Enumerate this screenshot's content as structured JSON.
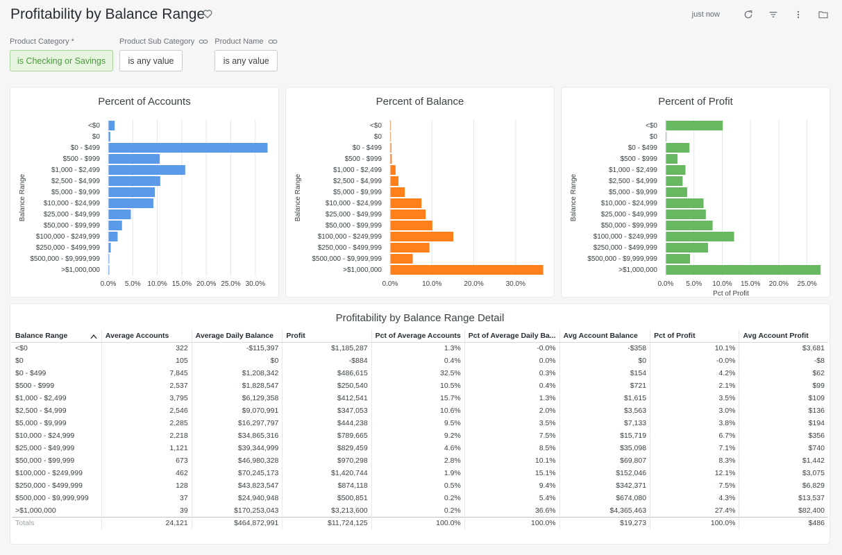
{
  "header": {
    "title": "Profitability by Balance Range",
    "timestamp": "just now",
    "icons": [
      "favorite-icon",
      "refresh-icon",
      "filter-icon",
      "more-vert-icon",
      "folder-icon"
    ]
  },
  "filters": [
    {
      "label": "Product Category *",
      "value": "is Checking or Savings",
      "active": true,
      "linked": false
    },
    {
      "label": "Product Sub Category",
      "value": "is any value",
      "active": false,
      "linked": true
    },
    {
      "label": "Product Name",
      "value": "is any value",
      "active": false,
      "linked": true
    }
  ],
  "charts": {
    "categories": [
      "<$0",
      "$0",
      "$0 - $499",
      "$500 - $999",
      "$1,000 - $2,499",
      "$2,500 - $4,999",
      "$5,000 - $9,999",
      "$10,000 - $24,999",
      "$25,000 - $49,999",
      "$50,000 - $99,999",
      "$100,000 - $249,999",
      "$250,000 - $499,999",
      "$500,000 - $9,999,999",
      ">$1,000,000"
    ],
    "colors": {
      "accounts": "#5a9ae8",
      "balance": "#ff7f1a",
      "profit": "#68b861"
    }
  },
  "chart_data": [
    {
      "type": "bar",
      "orientation": "horizontal",
      "title": "Percent of Accounts",
      "ylabel": "Balance Range",
      "xlabel": "",
      "categories": [
        "<$0",
        "$0",
        "$0 - $499",
        "$500 - $999",
        "$1,000 - $2,499",
        "$2,500 - $4,999",
        "$5,000 - $9,999",
        "$10,000 - $24,999",
        "$25,000 - $49,999",
        "$50,000 - $99,999",
        "$100,000 - $249,999",
        "$250,000 - $499,999",
        "$500,000 - $9,999,999",
        ">$1,000,000"
      ],
      "values": [
        1.3,
        0.4,
        32.5,
        10.5,
        15.7,
        10.6,
        9.5,
        9.2,
        4.6,
        2.8,
        1.9,
        0.5,
        0.2,
        0.2
      ],
      "xlim": [
        0,
        33
      ],
      "xticks": [
        "0.0%",
        "5.0%",
        "10.0%",
        "15.0%",
        "20.0%",
        "25.0%",
        "30.0%"
      ],
      "grid": true,
      "color": "#5a9ae8"
    },
    {
      "type": "bar",
      "orientation": "horizontal",
      "title": "Percent of Balance",
      "ylabel": "Balance Range",
      "xlabel": "",
      "categories": [
        "<$0",
        "$0",
        "$0 - $499",
        "$500 - $999",
        "$1,000 - $2,499",
        "$2,500 - $4,999",
        "$5,000 - $9,999",
        "$10,000 - $24,999",
        "$25,000 - $49,999",
        "$50,000 - $99,999",
        "$100,000 - $249,999",
        "$250,000 - $499,999",
        "$500,000 - $9,999,999",
        ">$1,000,000"
      ],
      "values": [
        -0.0,
        0.0,
        0.3,
        0.4,
        1.3,
        2.0,
        3.5,
        7.5,
        8.5,
        10.1,
        15.1,
        9.4,
        5.4,
        36.6
      ],
      "xlim": [
        0,
        37
      ],
      "xticks": [
        "0.0%",
        "10.0%",
        "20.0%",
        "30.0%"
      ],
      "grid": true,
      "color": "#ff7f1a"
    },
    {
      "type": "bar",
      "orientation": "horizontal",
      "title": "Percent of Profit",
      "ylabel": "Balance Range",
      "xlabel": "Pct of Profit",
      "categories": [
        "<$0",
        "$0",
        "$0 - $499",
        "$500 - $999",
        "$1,000 - $2,499",
        "$2,500 - $4,999",
        "$5,000 - $9,999",
        "$10,000 - $24,999",
        "$25,000 - $49,999",
        "$50,000 - $99,999",
        "$100,000 - $249,999",
        "$250,000 - $499,999",
        "$500,000 - $9,999,999",
        ">$1,000,000"
      ],
      "values": [
        10.1,
        -0.0,
        4.2,
        2.1,
        3.5,
        3.0,
        3.8,
        6.7,
        7.1,
        8.3,
        12.1,
        7.5,
        4.3,
        27.4
      ],
      "xlim": [
        0,
        27.5
      ],
      "xticks": [
        "0.0%",
        "5.0%",
        "10.0%",
        "15.0%",
        "20.0%",
        "25.0%"
      ],
      "grid": true,
      "color": "#68b861"
    }
  ],
  "table": {
    "title": "Profitability by Balance Range Detail",
    "columns": [
      "Balance Range",
      "Average Accounts",
      "Average Daily Balance",
      "Profit",
      "Pct of Average Accounts",
      "Pct of Average Daily Ba...",
      "Avg Account Balance",
      "Pct of Profit",
      "Avg Account Profit"
    ],
    "rows": [
      [
        "<$0",
        "322",
        "-$115,397",
        "$1,185,287",
        "1.3%",
        "-0.0%",
        "-$358",
        "10.1%",
        "$3,681"
      ],
      [
        "$0",
        "105",
        "$0",
        "-$884",
        "0.4%",
        "0.0%",
        "$0",
        "-0.0%",
        "-$8"
      ],
      [
        "$0 - $499",
        "7,845",
        "$1,208,342",
        "$486,615",
        "32.5%",
        "0.3%",
        "$154",
        "4.2%",
        "$62"
      ],
      [
        "$500 - $999",
        "2,537",
        "$1,828,547",
        "$250,540",
        "10.5%",
        "0.4%",
        "$721",
        "2.1%",
        "$99"
      ],
      [
        "$1,000 - $2,499",
        "3,795",
        "$6,129,358",
        "$412,541",
        "15.7%",
        "1.3%",
        "$1,615",
        "3.5%",
        "$109"
      ],
      [
        "$2,500 - $4,999",
        "2,546",
        "$9,070,991",
        "$347,053",
        "10.6%",
        "2.0%",
        "$3,563",
        "3.0%",
        "$136"
      ],
      [
        "$5,000 - $9,999",
        "2,285",
        "$16,297,797",
        "$444,238",
        "9.5%",
        "3.5%",
        "$7,133",
        "3.8%",
        "$194"
      ],
      [
        "$10,000 - $24,999",
        "2,218",
        "$34,865,316",
        "$789,665",
        "9.2%",
        "7.5%",
        "$15,719",
        "6.7%",
        "$356"
      ],
      [
        "$25,000 - $49,999",
        "1,121",
        "$39,344,999",
        "$829,459",
        "4.6%",
        "8.5%",
        "$35,098",
        "7.1%",
        "$740"
      ],
      [
        "$50,000 - $99,999",
        "673",
        "$46,980,328",
        "$970,298",
        "2.8%",
        "10.1%",
        "$69,807",
        "8.3%",
        "$1,442"
      ],
      [
        "$100,000 - $249,999",
        "462",
        "$70,245,173",
        "$1,420,744",
        "1.9%",
        "15.1%",
        "$152,046",
        "12.1%",
        "$3,075"
      ],
      [
        "$250,000 - $499,999",
        "128",
        "$43,823,547",
        "$874,118",
        "0.5%",
        "9.4%",
        "$342,371",
        "7.5%",
        "$6,829"
      ],
      [
        "$500,000 - $9,999,999",
        "37",
        "$24,940,948",
        "$500,851",
        "0.2%",
        "5.4%",
        "$674,080",
        "4.3%",
        "$13,537"
      ],
      [
        ">$1,000,000",
        "39",
        "$170,253,043",
        "$3,213,600",
        "0.2%",
        "36.6%",
        "$4,365,463",
        "27.4%",
        "$82,400"
      ]
    ],
    "totals": [
      "Totals",
      "24,121",
      "$464,872,991",
      "$11,724,125",
      "100.0%",
      "100.0%",
      "$19,273",
      "100.0%",
      "$486"
    ],
    "sort": {
      "column": "Balance Range",
      "direction": "ascending"
    }
  }
}
